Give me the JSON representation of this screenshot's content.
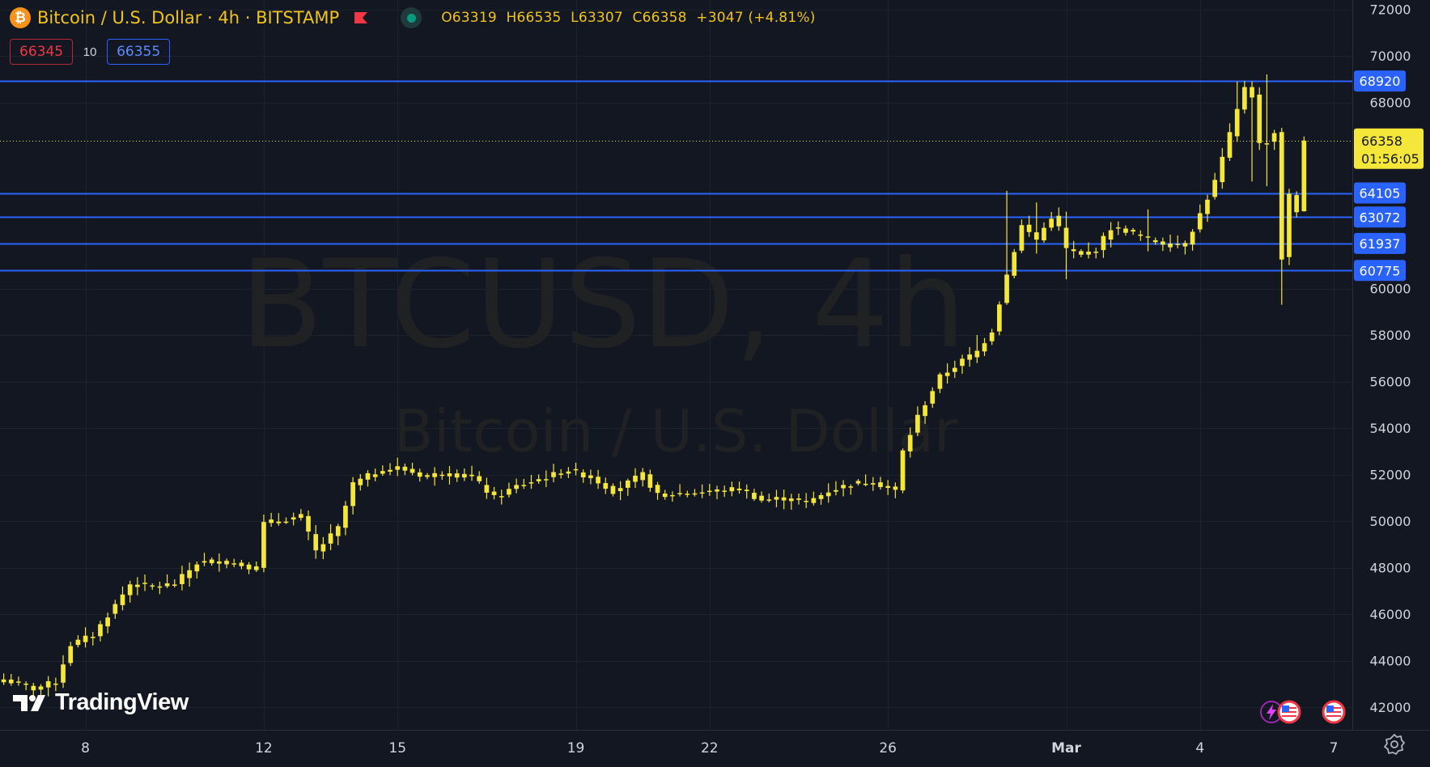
{
  "header": {
    "symbol_title": "Bitcoin / U.S. Dollar · 4h · BITSTAMP",
    "logo_glyph": "₿",
    "ohlc": {
      "open": "O63319",
      "high": "H66535",
      "low": "L63307",
      "close": "C66358",
      "change": "+3047 (+4.81%)"
    }
  },
  "quote": {
    "sell": "66345",
    "spread": "10",
    "buy": "66355"
  },
  "brand": {
    "name": "TradingView"
  },
  "colors": {
    "background": "#131722",
    "candle": "#f5e63a",
    "hline": "#2962ff",
    "price_tag": "#f5e63a",
    "grid": "#1e222d",
    "axis_text": "#d1d4dc"
  },
  "chart_data": {
    "type": "candlestick",
    "title": "BTCUSD, 4h",
    "subtitle": "Bitcoin / U.S. Dollar",
    "ylim": [
      41000,
      72400
    ],
    "y_ticks": [
      42000,
      44000,
      46000,
      48000,
      50000,
      52000,
      54000,
      56000,
      58000,
      60000,
      68000,
      70000,
      72000
    ],
    "x_ticks": [
      {
        "label": "8",
        "index": 11
      },
      {
        "label": "12",
        "index": 35
      },
      {
        "label": "15",
        "index": 53
      },
      {
        "label": "19",
        "index": 77
      },
      {
        "label": "22",
        "index": 95
      },
      {
        "label": "26",
        "index": 119
      },
      {
        "label": "Mar",
        "index": 143
      },
      {
        "label": "4",
        "index": 161
      },
      {
        "label": "7",
        "index": 179
      }
    ],
    "x_index_range": [
      -0.5,
      181.5
    ],
    "horizontal_lines": [
      68920,
      64105,
      63072,
      61937,
      60775
    ],
    "last_price": {
      "value": 66358,
      "label": "66358",
      "countdown": "01:56:05"
    },
    "grid": true,
    "anchors": [
      [
        0,
        43200
      ],
      [
        4,
        42800
      ],
      [
        7,
        43100
      ],
      [
        9,
        44700
      ],
      [
        12,
        45100
      ],
      [
        15,
        46400
      ],
      [
        17,
        47300
      ],
      [
        20,
        47200
      ],
      [
        23,
        47300
      ],
      [
        26,
        48200
      ],
      [
        29,
        48300
      ],
      [
        34,
        48000
      ],
      [
        35,
        49900
      ],
      [
        40,
        50200
      ],
      [
        42,
        48700
      ],
      [
        45,
        49700
      ],
      [
        47,
        51600
      ],
      [
        50,
        52100
      ],
      [
        53,
        52300
      ],
      [
        57,
        51900
      ],
      [
        59,
        52100
      ],
      [
        63,
        51900
      ],
      [
        66,
        51000
      ],
      [
        69,
        51500
      ],
      [
        73,
        51900
      ],
      [
        76,
        52200
      ],
      [
        79,
        51900
      ],
      [
        82,
        51300
      ],
      [
        86,
        52000
      ],
      [
        88,
        51100
      ],
      [
        91,
        51200
      ],
      [
        96,
        51300
      ],
      [
        99,
        51400
      ],
      [
        102,
        50900
      ],
      [
        105,
        51000
      ],
      [
        108,
        50800
      ],
      [
        111,
        51300
      ],
      [
        114,
        51600
      ],
      [
        117,
        51700
      ],
      [
        120,
        51300
      ],
      [
        121,
        53000
      ],
      [
        123,
        54500
      ],
      [
        126,
        56200
      ],
      [
        129,
        56900
      ],
      [
        131,
        57300
      ],
      [
        133,
        58200
      ],
      [
        135,
        60600
      ],
      [
        137,
        62700
      ],
      [
        139,
        62100
      ],
      [
        141,
        63100
      ],
      [
        142,
        62600
      ],
      [
        143,
        61700
      ],
      [
        145,
        61400
      ],
      [
        147,
        61700
      ],
      [
        149,
        62600
      ],
      [
        151,
        62500
      ],
      [
        154,
        62100
      ],
      [
        157,
        61900
      ],
      [
        159,
        61900
      ],
      [
        161,
        63200
      ],
      [
        163,
        64600
      ],
      [
        165,
        66600
      ],
      [
        167,
        68700
      ],
      [
        168,
        68300
      ],
      [
        169,
        66200
      ],
      [
        170,
        66300
      ],
      [
        171,
        66700
      ],
      [
        172,
        61300
      ],
      [
        173,
        64000
      ],
      [
        174,
        63300
      ],
      [
        175,
        66358
      ]
    ],
    "highlights": [
      {
        "i": 131,
        "h": 58000,
        "l": 56800
      },
      {
        "i": 135,
        "h": 64200,
        "l": 59300
      },
      {
        "i": 139,
        "h": 63700,
        "l": 61500
      },
      {
        "i": 143,
        "h": 63300,
        "l": 60400
      },
      {
        "i": 154,
        "h": 63400,
        "l": 61600
      },
      {
        "i": 166,
        "h": 68900,
        "l": 66300
      },
      {
        "i": 168,
        "h": 68900,
        "l": 64600
      },
      {
        "i": 170,
        "h": 69200,
        "l": 64400
      },
      {
        "i": 172,
        "h": 66900,
        "l": 59300
      },
      {
        "i": 175,
        "h": 66535,
        "l": 63307
      }
    ]
  }
}
